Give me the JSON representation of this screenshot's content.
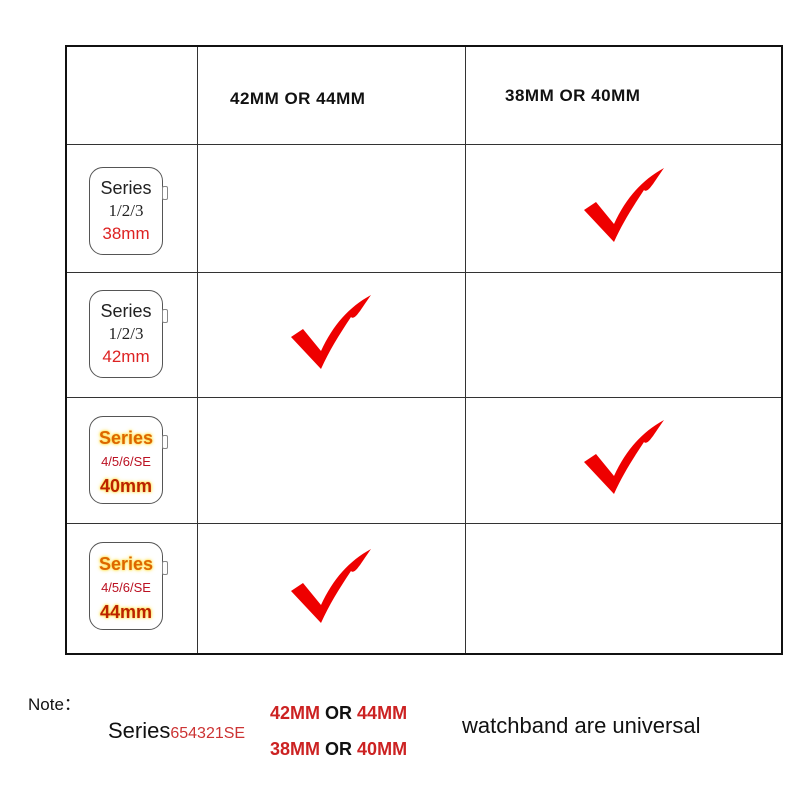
{
  "table": {
    "headers": [
      "42MM OR 44MM",
      "38MM OR 40MM"
    ],
    "rows": [
      {
        "series": "Series",
        "models": "1/2/3",
        "size": "38mm",
        "checked_column": 2
      },
      {
        "series": "Series",
        "models": "1/2/3",
        "size": "42mm",
        "checked_column": 1
      },
      {
        "series": "Series",
        "models": "4/5/6/SE",
        "size": "40mm",
        "checked_column": 2
      },
      {
        "series": "Series",
        "models": "4/5/6/SE",
        "size": "44mm",
        "checked_column": 1
      }
    ],
    "check_icon": "red-checkmark",
    "check_color": "#ee0000"
  },
  "note": {
    "label": "Note：",
    "series": "Series",
    "series_models": "654321SE",
    "line1": {
      "a": "42MM",
      "or": "OR",
      "b": "44MM"
    },
    "line2": {
      "a": "38MM",
      "or": "OR",
      "b": "40MM"
    },
    "suffix": "watchband are universal"
  }
}
